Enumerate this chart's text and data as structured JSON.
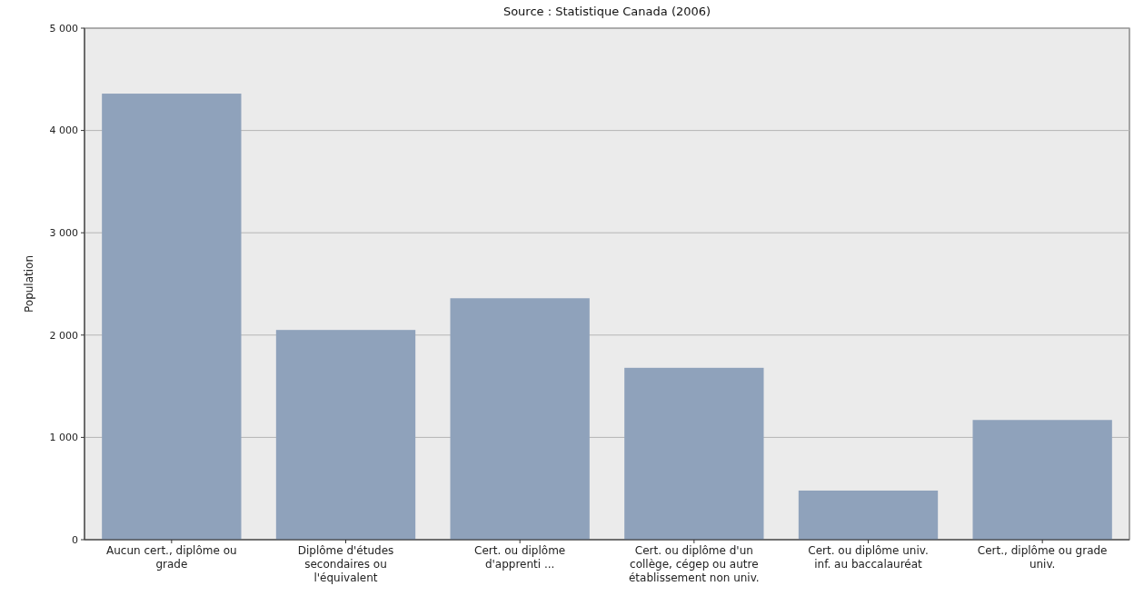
{
  "chart_data": {
    "type": "bar",
    "title": "Source : Statistique Canada (2006)",
    "ylabel": "Population",
    "categories": [
      "Aucun cert., diplôme ou grade",
      "Diplôme d'études secondaires ou l'équivalent",
      "Cert. ou diplôme d'apprenti ...",
      "Cert. ou diplôme d'un collège, cégep ou autre établissement non univ.",
      "Cert. ou diplôme univ. inf. au baccalauréat",
      "Cert., diplôme ou grade univ."
    ],
    "values": [
      4360,
      2050,
      2360,
      1680,
      480,
      1170
    ],
    "color": "#8fa2bb",
    "ylim": [
      0,
      5000
    ],
    "yticks": [
      0,
      {
        "value": 1000,
        "label": "1 000"
      },
      {
        "value": 2000,
        "label": "2 000"
      },
      {
        "value": 3000,
        "label": "3 000"
      },
      {
        "value": 4000,
        "label": "4 000"
      },
      {
        "value": 5000,
        "label": "5 000"
      }
    ],
    "grid": "y"
  }
}
